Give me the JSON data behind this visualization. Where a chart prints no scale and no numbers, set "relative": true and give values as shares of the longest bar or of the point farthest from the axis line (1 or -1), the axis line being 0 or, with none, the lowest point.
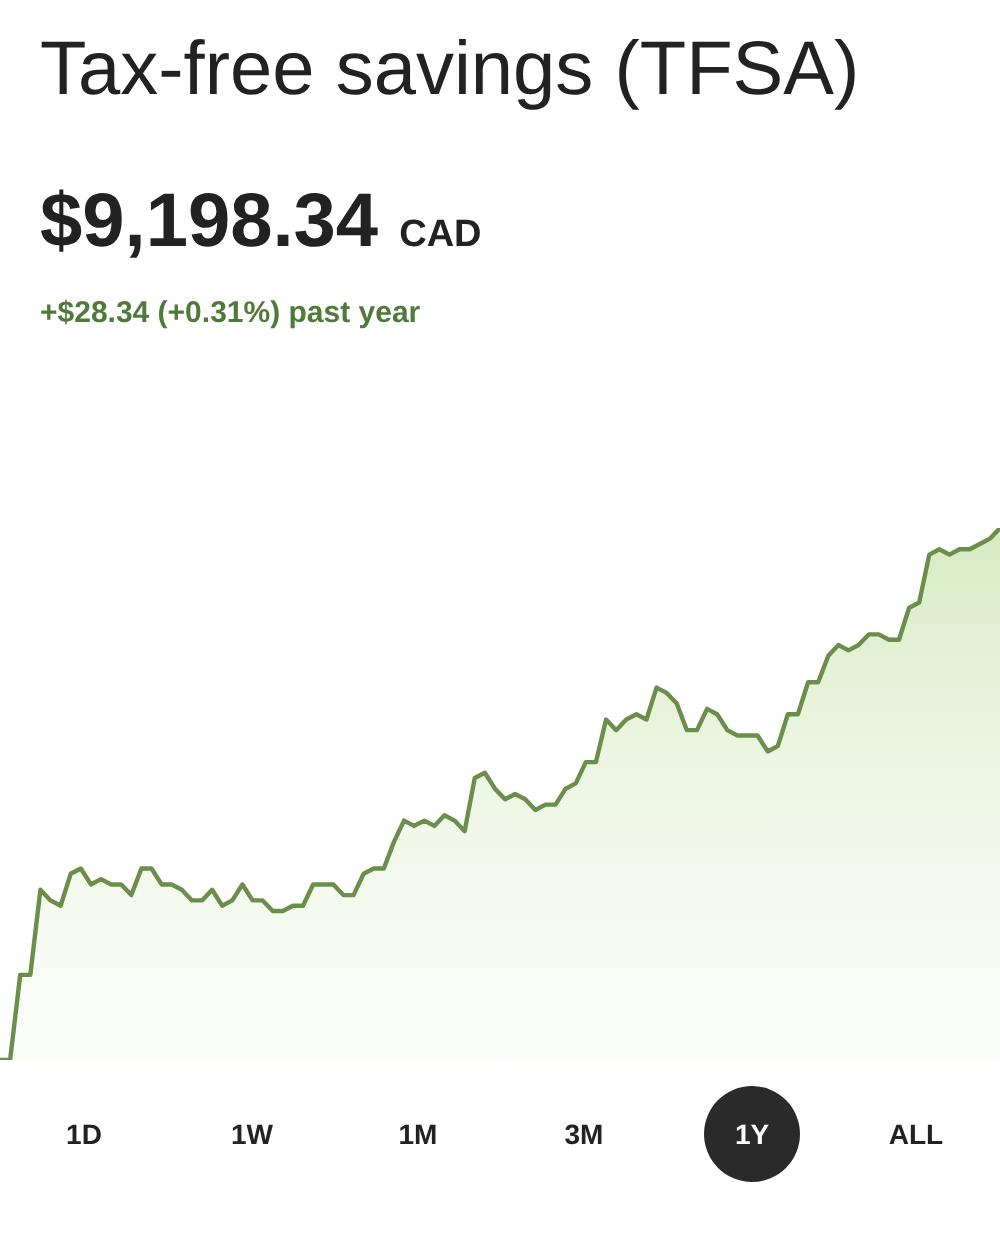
{
  "chart_data": {
    "type": "area",
    "title": "Tax-free savings (TFSA)",
    "subtitle": "$9,198.34 CAD",
    "relative": true,
    "color": "#6b8f4a",
    "legend": false,
    "marker": "none",
    "annotations": [
      "+$28.34 (+0.31%) past year",
      "1D",
      "1W",
      "1M",
      "3M",
      "1Y",
      "ALL"
    ],
    "categories": [
      null,
      null,
      null,
      null,
      null,
      null,
      null,
      null,
      null,
      null,
      null,
      null,
      null,
      null,
      null,
      null,
      null,
      null,
      null,
      null,
      null,
      null,
      null,
      null,
      null,
      null,
      null,
      null,
      null,
      null,
      null,
      null,
      null,
      null,
      null,
      null,
      null,
      null,
      null,
      null,
      null,
      null,
      null,
      null,
      null,
      null,
      null,
      null,
      null,
      null,
      null,
      null,
      null,
      null,
      null,
      null,
      null,
      null,
      null,
      null,
      null,
      null,
      null,
      null,
      null,
      null,
      null,
      null,
      null,
      null,
      null,
      null,
      null,
      null,
      null,
      null,
      null,
      null,
      null,
      null,
      null,
      null,
      null,
      null,
      null,
      null,
      null,
      null,
      null,
      null,
      null,
      null,
      null,
      null,
      null,
      null,
      null,
      null,
      null,
      null
    ],
    "values": [
      0,
      0,
      0.16,
      0.16,
      0.32,
      0.3,
      0.29,
      0.35,
      0.36,
      0.33,
      0.34,
      0.33,
      0.33,
      0.31,
      0.36,
      0.36,
      0.33,
      0.33,
      0.32,
      0.3,
      0.3,
      0.32,
      0.29,
      0.3,
      0.33,
      0.3,
      0.3,
      0.28,
      0.28,
      0.29,
      0.29,
      0.33,
      0.33,
      0.33,
      0.31,
      0.31,
      0.35,
      0.36,
      0.36,
      0.41,
      0.45,
      0.44,
      0.45,
      0.44,
      0.46,
      0.45,
      0.43,
      0.53,
      0.54,
      0.51,
      0.49,
      0.5,
      0.49,
      0.47,
      0.48,
      0.48,
      0.51,
      0.52,
      0.56,
      0.56,
      0.64,
      0.62,
      0.64,
      0.65,
      0.64,
      0.7,
      0.69,
      0.67,
      0.62,
      0.62,
      0.66,
      0.65,
      0.62,
      0.61,
      0.61,
      0.61,
      0.58,
      0.59,
      0.65,
      0.65,
      0.71,
      0.71,
      0.76,
      0.78,
      0.77,
      0.78,
      0.8,
      0.8,
      0.79,
      0.79,
      0.85,
      0.86,
      0.95,
      0.96,
      0.95,
      0.96,
      0.96,
      0.97,
      0.98,
      1
    ]
  }
}
